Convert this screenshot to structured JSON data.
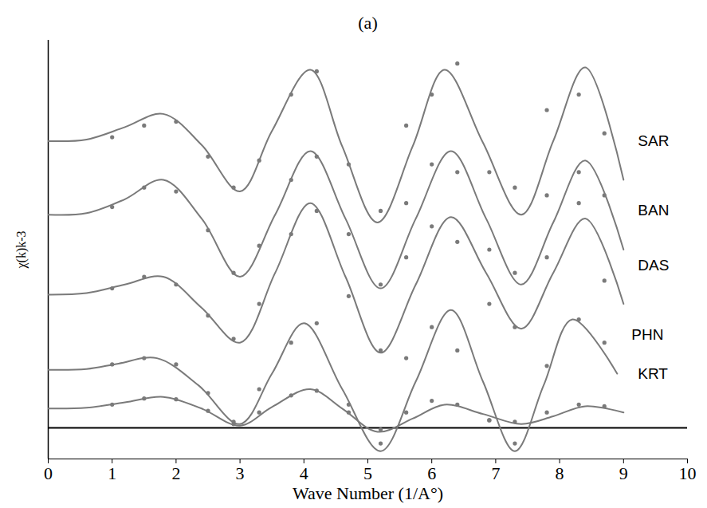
{
  "chart_data": {
    "type": "line",
    "title": "(a)",
    "x_label": "Wave Number (1/A°)",
    "y_label": "χ(k)k-3",
    "xlim": [
      0,
      10
    ],
    "xticks": [
      0,
      1,
      2,
      3,
      4,
      5,
      6,
      7,
      8,
      9,
      10
    ],
    "ylim": [
      -0.4,
      5.0
    ],
    "yticks": [],
    "tick_labels": "x",
    "grid": false,
    "series": [
      {
        "name": "SAR",
        "color": "#7a7a7a",
        "line_style": "solid",
        "marker": "circle",
        "x": [
          0,
          0.6,
          1.2,
          1.8,
          2.4,
          3.0,
          3.5,
          4.1,
          4.6,
          5.15,
          5.7,
          6.2,
          6.8,
          7.4,
          7.9,
          8.4,
          9.0
        ],
        "values": [
          3.7,
          3.72,
          3.88,
          4.05,
          3.65,
          3.05,
          3.83,
          4.62,
          3.63,
          2.65,
          3.63,
          4.62,
          3.68,
          2.75,
          3.7,
          4.65,
          3.2
        ],
        "points": {
          "x": [
            1.0,
            1.5,
            2.0,
            2.5,
            2.9,
            3.3,
            3.8,
            4.2,
            4.7,
            5.2,
            5.6,
            6.0,
            6.4,
            6.9,
            7.3,
            7.8,
            8.3,
            8.7
          ],
          "y": [
            3.75,
            3.9,
            3.95,
            3.5,
            3.1,
            3.45,
            4.3,
            4.6,
            3.4,
            2.8,
            3.9,
            4.3,
            4.7,
            3.3,
            3.1,
            4.1,
            4.3,
            3.8
          ]
        }
      },
      {
        "name": "BAN",
        "color": "#7a7a7a",
        "line_style": "solid",
        "marker": "circle",
        "x": [
          0,
          0.6,
          1.2,
          1.8,
          2.4,
          3.0,
          3.55,
          4.1,
          4.65,
          5.2,
          5.75,
          6.3,
          6.85,
          7.4,
          7.9,
          8.4,
          9.0
        ],
        "values": [
          2.75,
          2.77,
          2.95,
          3.2,
          2.7,
          1.95,
          2.75,
          3.57,
          2.7,
          1.8,
          2.7,
          3.57,
          2.7,
          1.85,
          2.65,
          3.45,
          2.3
        ],
        "points": {
          "x": [
            1.0,
            1.5,
            2.0,
            2.5,
            2.9,
            3.3,
            3.8,
            4.2,
            4.7,
            5.2,
            5.6,
            6.0,
            6.4,
            6.9,
            7.3,
            7.8,
            8.3,
            8.7
          ],
          "y": [
            2.85,
            3.1,
            3.05,
            2.55,
            2.0,
            2.35,
            3.2,
            3.5,
            2.5,
            1.85,
            2.9,
            3.4,
            3.3,
            2.3,
            2.0,
            3.0,
            3.3,
            3.0
          ]
        }
      },
      {
        "name": "DAS",
        "color": "#7a7a7a",
        "line_style": "solid",
        "marker": "circle",
        "x": [
          0,
          0.6,
          1.2,
          1.8,
          2.4,
          3.0,
          3.55,
          4.1,
          4.65,
          5.2,
          5.75,
          6.3,
          6.85,
          7.4,
          7.9,
          8.4,
          9.0
        ],
        "values": [
          1.72,
          1.74,
          1.85,
          1.95,
          1.55,
          1.1,
          2.0,
          2.9,
          1.95,
          0.97,
          1.85,
          2.72,
          2.0,
          1.28,
          2.0,
          2.7,
          1.6
        ],
        "points": {
          "x": [
            1.0,
            1.5,
            2.0,
            2.5,
            2.9,
            3.3,
            3.8,
            4.2,
            4.7,
            5.2,
            5.6,
            6.0,
            6.4,
            6.9,
            7.3,
            7.8,
            8.3,
            8.7
          ],
          "y": [
            1.8,
            1.95,
            1.85,
            1.45,
            1.15,
            1.6,
            2.5,
            2.8,
            1.7,
            1.0,
            2.2,
            2.6,
            2.4,
            1.6,
            1.3,
            2.2,
            2.9,
            1.9
          ]
        }
      },
      {
        "name": "PHN",
        "color": "#7a7a7a",
        "line_style": "solid",
        "marker": "circle",
        "x": [
          0,
          0.6,
          1.1,
          1.7,
          2.35,
          3.0,
          3.5,
          4.0,
          4.6,
          5.2,
          5.75,
          6.3,
          6.8,
          7.3,
          7.75,
          8.2,
          8.9
        ],
        "values": [
          0.75,
          0.76,
          0.83,
          0.9,
          0.55,
          0.05,
          0.7,
          1.35,
          0.5,
          -0.3,
          0.6,
          1.52,
          0.6,
          -0.3,
          0.55,
          1.4,
          0.7
        ],
        "points": {
          "x": [
            1.0,
            1.5,
            2.0,
            2.5,
            2.9,
            3.3,
            3.8,
            4.2,
            4.7,
            5.2,
            5.6,
            6.0,
            6.4,
            6.9,
            7.3,
            7.8,
            8.3,
            8.7
          ],
          "y": [
            0.82,
            0.9,
            0.82,
            0.45,
            0.08,
            0.5,
            1.1,
            1.35,
            0.3,
            -0.2,
            0.9,
            1.3,
            1.0,
            0.1,
            -0.2,
            0.8,
            1.4,
            1.1
          ]
        }
      },
      {
        "name": "KRT",
        "color": "#7a7a7a",
        "line_style": "solid",
        "marker": "circle",
        "x": [
          0,
          0.6,
          1.2,
          1.8,
          2.4,
          3.0,
          3.5,
          4.1,
          4.6,
          5.15,
          5.7,
          6.2,
          6.8,
          7.4,
          7.9,
          8.4,
          9.0
        ],
        "values": [
          0.25,
          0.26,
          0.33,
          0.4,
          0.25,
          0.03,
          0.27,
          0.5,
          0.25,
          -0.05,
          0.12,
          0.3,
          0.18,
          0.05,
          0.15,
          0.28,
          0.2
        ],
        "points": {
          "x": [
            1.0,
            1.5,
            2.0,
            2.5,
            2.9,
            3.3,
            3.8,
            4.2,
            4.7,
            5.2,
            5.6,
            6.0,
            6.4,
            6.9,
            7.3,
            7.8,
            8.3,
            8.7
          ],
          "y": [
            0.3,
            0.38,
            0.37,
            0.22,
            0.05,
            0.2,
            0.42,
            0.48,
            0.2,
            -0.02,
            0.2,
            0.35,
            0.3,
            0.1,
            0.08,
            0.2,
            0.3,
            0.28
          ]
        }
      }
    ]
  }
}
